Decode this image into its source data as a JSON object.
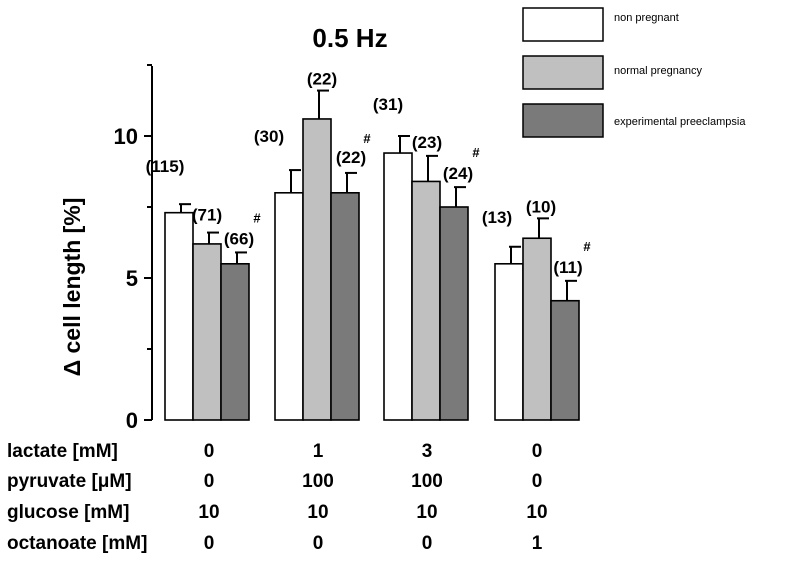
{
  "chart_data": {
    "type": "bar",
    "title": "0.5 Hz",
    "ylabel": "Δ cell length [%]",
    "ylim": [
      0,
      12.5
    ],
    "yticks": [
      0,
      5,
      10
    ],
    "grid": false,
    "legend_placement": "top-right",
    "series": [
      {
        "name": "non pregnant",
        "color": "#ffffff",
        "values": [
          7.3,
          8.0,
          9.4,
          5.5
        ],
        "errors": [
          0.3,
          0.8,
          0.6,
          0.6
        ],
        "n_labels": [
          "(115)",
          "(30)",
          "(31)",
          "(13)"
        ],
        "markers": [
          "",
          "",
          "",
          ""
        ]
      },
      {
        "name": "normal pregnancy",
        "color": "#c0c0c0",
        "values": [
          6.2,
          10.6,
          8.4,
          6.4
        ],
        "errors": [
          0.4,
          1.0,
          0.9,
          0.7
        ],
        "n_labels": [
          "(71)",
          "(22)",
          "(23)",
          "(10)"
        ],
        "markers": [
          "",
          "",
          "",
          ""
        ]
      },
      {
        "name": "experimental preeclampsia",
        "color": "#7a7a7a",
        "values": [
          5.5,
          8.0,
          7.5,
          4.2
        ],
        "errors": [
          0.4,
          0.7,
          0.7,
          0.7
        ],
        "n_labels": [
          "(66)",
          "(22)",
          "(24)",
          "(11)"
        ],
        "markers": [
          "#",
          "#",
          "#",
          "#"
        ]
      }
    ],
    "conditions": [
      {
        "label": "lactate [mM]",
        "values": [
          "0",
          "1",
          "3",
          "0"
        ]
      },
      {
        "label": "pyruvate [μM]",
        "values": [
          "0",
          "100",
          "100",
          "0"
        ]
      },
      {
        "label": "glucose [mM]",
        "values": [
          "10",
          "10",
          "10",
          "10"
        ]
      },
      {
        "label": "octanoate [mM]",
        "values": [
          "0",
          "0",
          "0",
          "1"
        ]
      }
    ]
  }
}
